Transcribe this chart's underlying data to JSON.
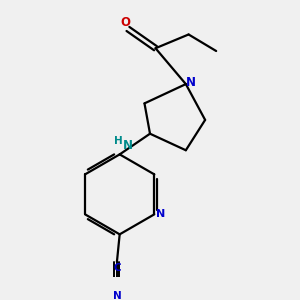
{
  "background_color": "#f0f0f0",
  "bond_color": "#000000",
  "nitrogen_color": "#0000cc",
  "oxygen_color": "#cc0000",
  "nh_color": "#008b8b",
  "figsize": [
    3.0,
    3.0
  ],
  "dpi": 100,
  "xlim": [
    0.0,
    1.0
  ],
  "ylim": [
    0.0,
    1.0
  ]
}
